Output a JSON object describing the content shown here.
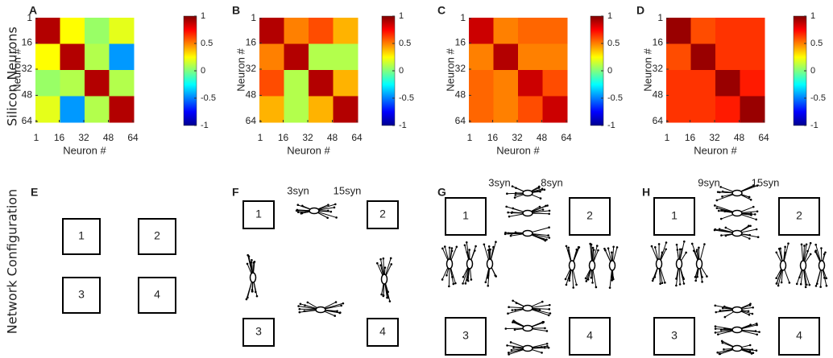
{
  "row_labels": [
    "Silicon Neurons",
    "Network Configuration"
  ],
  "heatmaps": [
    {
      "label": "A",
      "xlabel": "Neuron #",
      "ylabel": "Neuron #",
      "xlim": [
        0.5,
        64.5
      ],
      "ylim": [
        0.5,
        64.5
      ],
      "xticks": [
        1,
        16,
        32,
        48,
        64
      ],
      "yticks": [
        1,
        16,
        32,
        48,
        64
      ],
      "clim": [
        -1,
        1
      ],
      "cticks": [
        -1,
        -0.5,
        0,
        0.5,
        1
      ],
      "values": [
        [
          0.9,
          0.25,
          0.05,
          0.2
        ],
        [
          0.25,
          0.9,
          0.1,
          -0.45
        ],
        [
          0.05,
          0.1,
          0.9,
          0.1
        ],
        [
          0.2,
          -0.45,
          0.1,
          0.9
        ]
      ]
    },
    {
      "label": "B",
      "xlabel": "Neuron #",
      "ylabel": "Neuron #",
      "xlim": [
        0.5,
        64.5
      ],
      "ylim": [
        0.5,
        64.5
      ],
      "xticks": [
        1,
        16,
        32,
        48,
        64
      ],
      "yticks": [
        1,
        16,
        32,
        48,
        64
      ],
      "clim": [
        -1,
        1
      ],
      "cticks": [
        -1,
        -0.5,
        0,
        0.5,
        1
      ],
      "values": [
        [
          0.9,
          0.5,
          0.6,
          0.4
        ],
        [
          0.5,
          0.9,
          0.1,
          0.1
        ],
        [
          0.6,
          0.1,
          0.9,
          0.4
        ],
        [
          0.4,
          0.1,
          0.4,
          0.9
        ]
      ]
    },
    {
      "label": "C",
      "xlabel": "Neuron #",
      "ylabel": "Neuron #",
      "xlim": [
        0.5,
        64.5
      ],
      "ylim": [
        0.5,
        64.5
      ],
      "xticks": [
        1,
        16,
        32,
        48,
        64
      ],
      "yticks": [
        1,
        16,
        32,
        48,
        64
      ],
      "clim": [
        -1,
        1
      ],
      "cticks": [
        -1,
        -0.5,
        0,
        0.5,
        1
      ],
      "values": [
        [
          0.85,
          0.5,
          0.55,
          0.55
        ],
        [
          0.5,
          0.9,
          0.5,
          0.5
        ],
        [
          0.55,
          0.5,
          0.85,
          0.6
        ],
        [
          0.55,
          0.5,
          0.6,
          0.85
        ]
      ]
    },
    {
      "label": "D",
      "xlabel": "Neuron #",
      "ylabel": "Neuron #",
      "xlim": [
        0.5,
        64.5
      ],
      "ylim": [
        0.5,
        64.5
      ],
      "xticks": [
        1,
        16,
        32,
        48,
        64
      ],
      "yticks": [
        1,
        16,
        32,
        48,
        64
      ],
      "clim": [
        -1,
        1
      ],
      "cticks": [
        -1,
        -0.5,
        0,
        0.5,
        1
      ],
      "values": [
        [
          0.95,
          0.6,
          0.65,
          0.65
        ],
        [
          0.6,
          0.95,
          0.65,
          0.65
        ],
        [
          0.65,
          0.65,
          0.95,
          0.7
        ],
        [
          0.65,
          0.65,
          0.7,
          0.95
        ]
      ]
    }
  ],
  "diagrams": [
    {
      "label": "E",
      "boxes": [
        "1",
        "2",
        "3",
        "4"
      ],
      "syn_labels": []
    },
    {
      "label": "F",
      "boxes": [
        "1",
        "2",
        "3",
        "4"
      ],
      "syn_labels": [
        "3syn",
        "15syn"
      ]
    },
    {
      "label": "G",
      "boxes": [
        "1",
        "2",
        "3",
        "4"
      ],
      "syn_labels": [
        "3syn",
        "8syn"
      ]
    },
    {
      "label": "H",
      "boxes": [
        "1",
        "2",
        "3",
        "4"
      ],
      "syn_labels": [
        "9syn",
        "15syn"
      ]
    }
  ]
}
